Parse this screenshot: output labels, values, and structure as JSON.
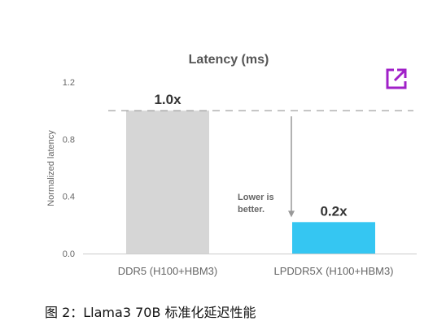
{
  "chart_data": {
    "type": "bar",
    "title": "Latency (ms)",
    "ylabel": "Normalized latency",
    "xlabel": "",
    "categories": [
      "DDR5 (H100+HBM3)",
      "LPDDR5X (H100+HBM3)"
    ],
    "values": [
      1.0,
      0.22
    ],
    "data_labels": [
      "1.0x",
      "0.2x"
    ],
    "ylim": [
      0,
      1.2
    ],
    "yticks": [
      "0.0",
      "0.4",
      "0.8",
      "1.2"
    ],
    "ytick_values": [
      0.0,
      0.4,
      0.8,
      1.2
    ],
    "reference_line": 1.0,
    "annotation": [
      "Lower is",
      "better."
    ],
    "grid": false,
    "bar_colors": [
      "#d6d6d6",
      "#35c6f2"
    ]
  },
  "caption": "图 2：Llama3 70B 标准化延迟性能",
  "icons": {
    "external_link": "external-link-icon"
  },
  "colors": {
    "accent": "#a020c8",
    "axis": "#cccccc",
    "reference": "#999999"
  }
}
